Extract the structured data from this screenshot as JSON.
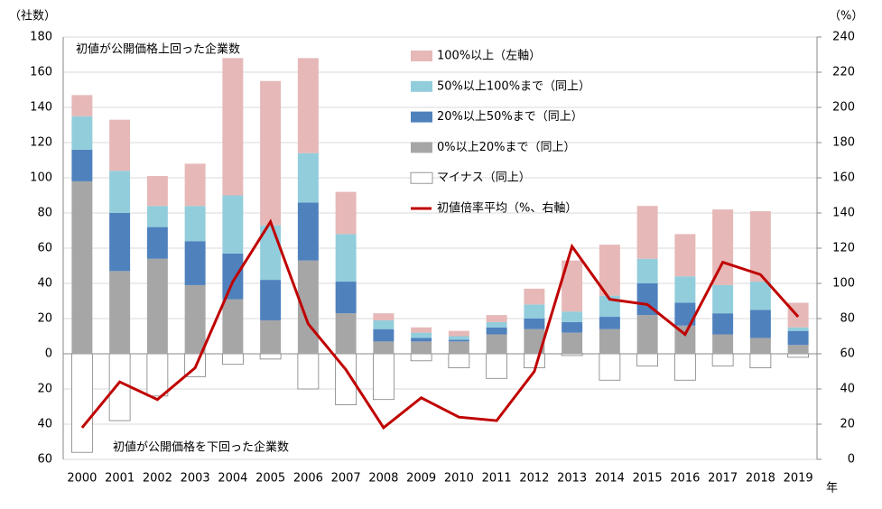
{
  "chart_data": {
    "type": "bar",
    "y_label": "（社数）",
    "y2_label": "（%）",
    "x_label": "年",
    "annotations": [
      "初値が公開価格上回った企業数",
      "初値が公開価格を下回った企業数"
    ],
    "categories": [
      "2000",
      "2001",
      "2002",
      "2003",
      "2004",
      "2005",
      "2006",
      "2007",
      "2008",
      "2009",
      "2010",
      "2011",
      "2012",
      "2013",
      "2014",
      "2015",
      "2016",
      "2017",
      "2018",
      "2019"
    ],
    "series": [
      {
        "name": "マイナス（同上）",
        "color": "#ffffff",
        "values": [
          -56,
          -38,
          -24,
          -13,
          -6,
          -3,
          -20,
          -29,
          -26,
          -4,
          -8,
          -14,
          -8,
          -1,
          -15,
          -7,
          -15,
          -7,
          -8,
          -2
        ]
      },
      {
        "name": "0%以上20%まで（同上）",
        "color": "#a6a6a6",
        "values": [
          98,
          47,
          54,
          39,
          31,
          19,
          53,
          23,
          7,
          7,
          7,
          11,
          14,
          12,
          14,
          22,
          16,
          11,
          9,
          5
        ]
      },
      {
        "name": "20%以上50%まで（同上）",
        "color": "#4f81bd",
        "values": [
          18,
          33,
          18,
          25,
          26,
          23,
          33,
          18,
          7,
          2,
          1,
          4,
          6,
          6,
          7,
          18,
          13,
          12,
          16,
          8
        ]
      },
      {
        "name": "50%以上100%まで（同上）",
        "color": "#92cddc",
        "values": [
          19,
          24,
          12,
          20,
          33,
          31,
          28,
          27,
          5,
          3,
          2,
          3,
          8,
          6,
          12,
          14,
          15,
          16,
          16,
          2
        ]
      },
      {
        "name": "100%以上（左軸）",
        "color": "#e6b8b7",
        "values": [
          12,
          29,
          17,
          24,
          78,
          82,
          54,
          24,
          4,
          3,
          3,
          4,
          9,
          29,
          29,
          30,
          24,
          43,
          40,
          14
        ]
      },
      {
        "name": "初値倍率平均（%、右軸）",
        "color": "#c00000",
        "type": "line",
        "axis": "y2",
        "values": [
          18,
          44,
          34,
          52,
          101,
          135,
          77,
          51,
          18,
          35,
          24,
          22,
          50,
          121,
          91,
          88,
          71,
          112,
          105,
          81
        ]
      }
    ],
    "ylim": [
      -60,
      180
    ],
    "yticks": [
      {
        "value": -60,
        "label": "60"
      },
      {
        "value": -40,
        "label": "40"
      },
      {
        "value": -20,
        "label": "20"
      },
      0,
      20,
      40,
      60,
      80,
      100,
      120,
      140,
      160,
      180
    ],
    "y2lim": [
      0,
      240
    ],
    "y2ticks": [
      0,
      20,
      40,
      60,
      80,
      100,
      120,
      140,
      160,
      180,
      200,
      220,
      240
    ],
    "grid": true
  }
}
